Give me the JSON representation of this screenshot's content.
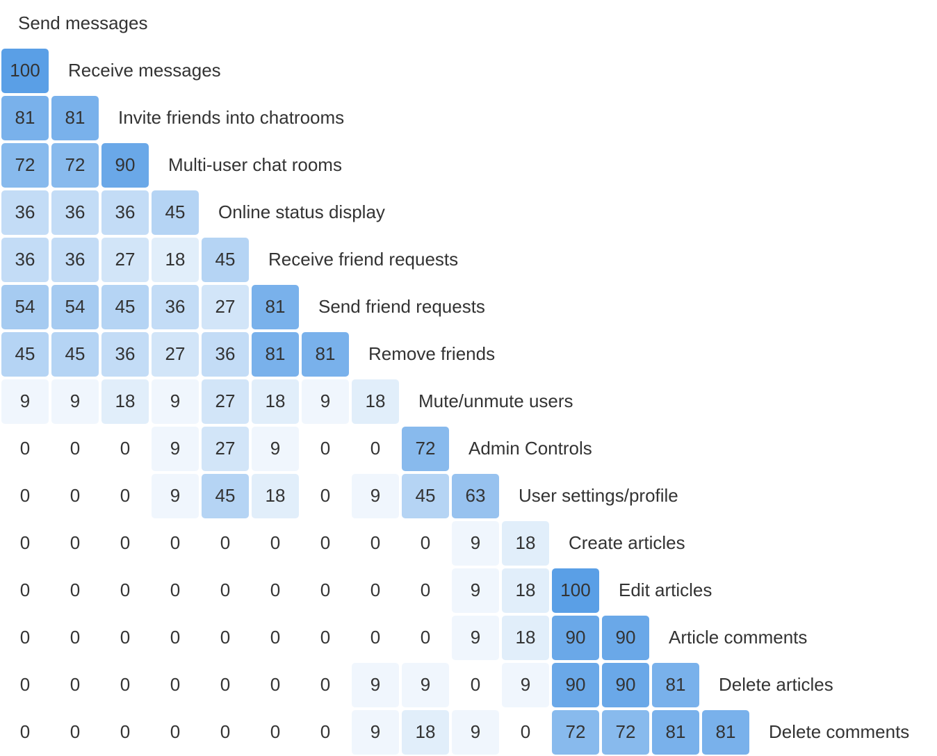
{
  "chart_data": {
    "type": "heatmap",
    "labels": [
      "Send messages",
      "Receive messages",
      "Invite friends into chatrooms",
      "Multi-user chat rooms",
      "Online status display",
      "Receive friend requests",
      "Send friend requests",
      "Remove friends",
      "Mute/unmute users",
      "Admin Controls",
      "User settings/profile",
      "Create articles",
      "Edit articles",
      "Article comments",
      "Delete articles",
      "Delete comments"
    ],
    "matrix": [
      [
        100
      ],
      [
        81,
        81
      ],
      [
        72,
        72,
        90
      ],
      [
        36,
        36,
        36,
        45
      ],
      [
        36,
        36,
        27,
        18,
        45
      ],
      [
        54,
        54,
        45,
        36,
        27,
        81
      ],
      [
        45,
        45,
        36,
        27,
        36,
        81,
        81
      ],
      [
        9,
        9,
        18,
        9,
        27,
        18,
        9,
        18
      ],
      [
        0,
        0,
        0,
        9,
        27,
        9,
        0,
        0,
        72
      ],
      [
        0,
        0,
        0,
        9,
        45,
        18,
        0,
        9,
        45,
        63
      ],
      [
        0,
        0,
        0,
        0,
        0,
        0,
        0,
        0,
        0,
        9,
        18
      ],
      [
        0,
        0,
        0,
        0,
        0,
        0,
        0,
        0,
        0,
        9,
        18,
        100
      ],
      [
        0,
        0,
        0,
        0,
        0,
        0,
        0,
        0,
        0,
        9,
        18,
        90,
        90
      ],
      [
        0,
        0,
        0,
        0,
        0,
        0,
        0,
        9,
        9,
        0,
        9,
        90,
        90,
        81
      ],
      [
        0,
        0,
        0,
        0,
        0,
        0,
        0,
        9,
        18,
        9,
        0,
        72,
        72,
        81,
        81
      ]
    ],
    "color": "#5a9fe6"
  }
}
